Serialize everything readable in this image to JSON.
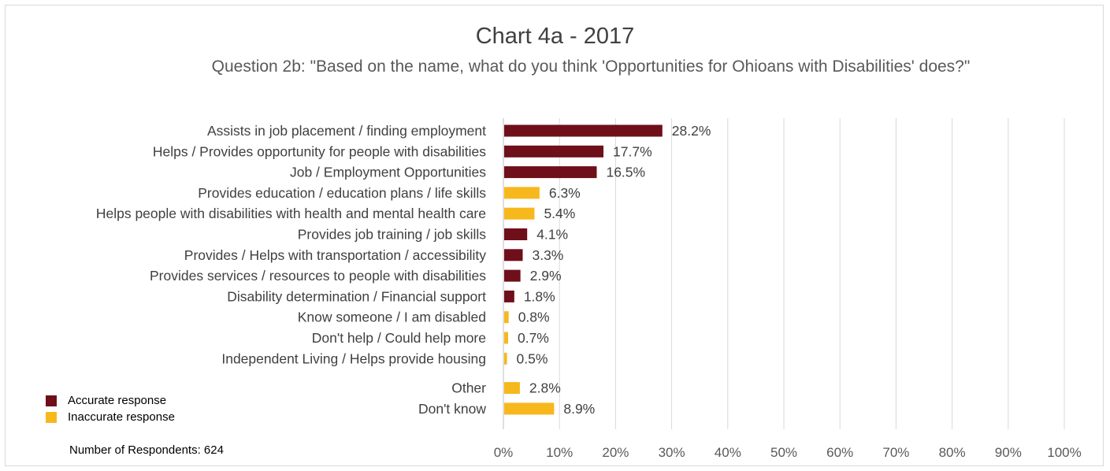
{
  "chart_data": {
    "type": "bar",
    "orientation": "horizontal",
    "title": "Chart 4a - 2017",
    "subtitle": "Question 2b: \"Based on the name, what do you think 'Opportunities for Ohioans with Disabilities' does?\"",
    "xlim": [
      0,
      100
    ],
    "x_ticks": [
      "0%",
      "10%",
      "20%",
      "30%",
      "40%",
      "50%",
      "60%",
      "70%",
      "80%",
      "90%",
      "100%"
    ],
    "grid": "vertical",
    "legend_position": "bottom-left",
    "colors": {
      "accurate": "#6e0f1a",
      "inaccurate": "#f7b81d"
    },
    "legend": [
      {
        "key": "accurate",
        "label": "Accurate response"
      },
      {
        "key": "inaccurate",
        "label": "Inaccurate response"
      }
    ],
    "bars": [
      {
        "label": "Assists in job placement / finding employment",
        "value": 28.2,
        "value_label": "28.2%",
        "category": "accurate"
      },
      {
        "label": "Helps / Provides opportunity for people with disabilities",
        "value": 17.7,
        "value_label": "17.7%",
        "category": "accurate"
      },
      {
        "label": "Job / Employment Opportunities",
        "value": 16.5,
        "value_label": "16.5%",
        "category": "accurate"
      },
      {
        "label": "Provides education / education plans / life skills",
        "value": 6.3,
        "value_label": "6.3%",
        "category": "inaccurate"
      },
      {
        "label": "Helps people with disabilities with health and mental health care",
        "value": 5.4,
        "value_label": "5.4%",
        "category": "inaccurate"
      },
      {
        "label": "Provides job training / job skills",
        "value": 4.1,
        "value_label": "4.1%",
        "category": "accurate"
      },
      {
        "label": "Provides / Helps with transportation / accessibility",
        "value": 3.3,
        "value_label": "3.3%",
        "category": "accurate"
      },
      {
        "label": "Provides services / resources to people with disabilities",
        "value": 2.9,
        "value_label": "2.9%",
        "category": "accurate"
      },
      {
        "label": "Disability determination / Financial support",
        "value": 1.8,
        "value_label": "1.8%",
        "category": "accurate"
      },
      {
        "label": "Know someone / I am disabled",
        "value": 0.8,
        "value_label": "0.8%",
        "category": "inaccurate"
      },
      {
        "label": "Don't help / Could help more",
        "value": 0.7,
        "value_label": "0.7%",
        "category": "inaccurate"
      },
      {
        "label": "Independent Living / Helps provide housing",
        "value": 0.5,
        "value_label": "0.5%",
        "category": "inaccurate"
      },
      {
        "label": "Other",
        "value": 2.8,
        "value_label": "2.8%",
        "category": "inaccurate"
      },
      {
        "label": "Don't know",
        "value": 8.9,
        "value_label": "8.9%",
        "category": "inaccurate"
      }
    ],
    "footnote": "Number of Respondents: 624"
  }
}
